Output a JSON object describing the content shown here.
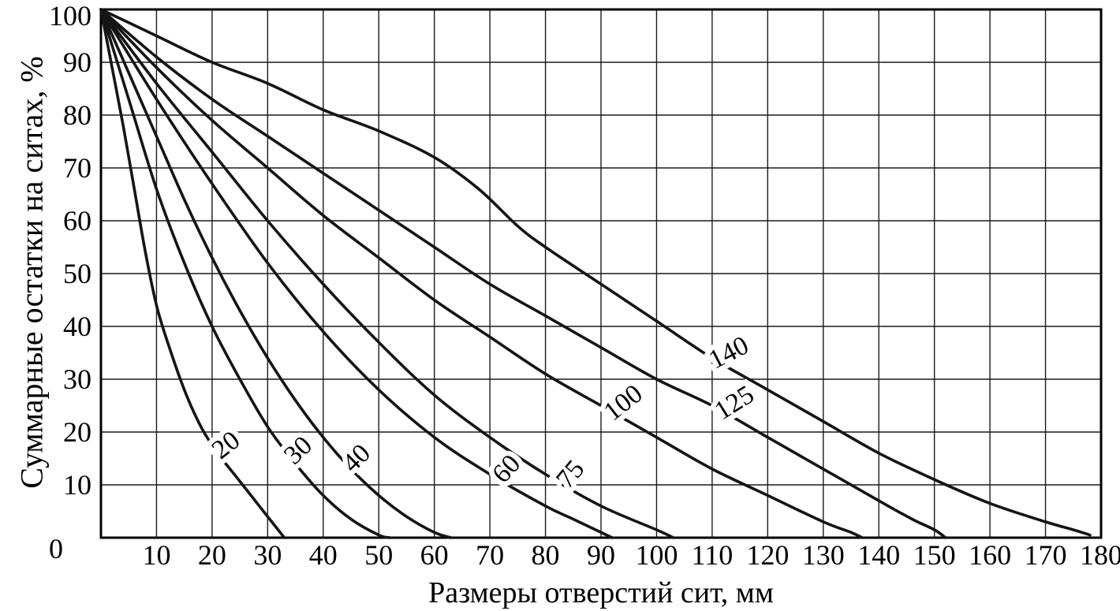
{
  "chart_data": {
    "type": "line",
    "title": "",
    "xlabel": "Размеры отверстий сит, мм",
    "ylabel": "Суммарные остатки на ситах, %",
    "origin_label": "0",
    "xlim": [
      0,
      180
    ],
    "ylim": [
      0,
      100
    ],
    "x_ticks": [
      10,
      20,
      30,
      40,
      50,
      60,
      70,
      80,
      90,
      100,
      110,
      120,
      130,
      140,
      150,
      160,
      170,
      180
    ],
    "y_ticks": [
      10,
      20,
      30,
      40,
      50,
      60,
      70,
      80,
      90,
      100
    ],
    "grid": true,
    "legend_position": "labels-on-curves",
    "series": [
      {
        "name": "20",
        "label_x": 22.5,
        "label_y": 17.5,
        "label_rotation": -38,
        "points": [
          [
            0,
            100
          ],
          [
            2,
            89
          ],
          [
            4,
            78
          ],
          [
            6,
            66
          ],
          [
            8,
            54
          ],
          [
            10,
            44
          ],
          [
            12,
            37
          ],
          [
            15,
            28
          ],
          [
            18,
            21
          ],
          [
            21,
            16
          ],
          [
            24,
            12
          ],
          [
            27,
            8
          ],
          [
            30,
            4
          ],
          [
            33,
            0
          ]
        ]
      },
      {
        "name": "30",
        "label_x": 35.5,
        "label_y": 16.5,
        "label_rotation": -43,
        "points": [
          [
            0,
            100
          ],
          [
            5,
            83
          ],
          [
            10,
            66
          ],
          [
            15,
            52
          ],
          [
            20,
            40
          ],
          [
            25,
            30
          ],
          [
            30,
            21
          ],
          [
            35,
            14
          ],
          [
            40,
            8
          ],
          [
            45,
            3.5
          ],
          [
            50,
            0.5
          ],
          [
            52,
            0
          ]
        ]
      },
      {
        "name": "40",
        "label_x": 46,
        "label_y": 15,
        "label_rotation": -44,
        "points": [
          [
            0,
            100
          ],
          [
            5,
            88
          ],
          [
            10,
            76
          ],
          [
            15,
            64
          ],
          [
            20,
            53
          ],
          [
            25,
            43
          ],
          [
            30,
            34
          ],
          [
            35,
            26
          ],
          [
            40,
            19
          ],
          [
            45,
            13
          ],
          [
            50,
            8
          ],
          [
            55,
            4
          ],
          [
            60,
            1
          ],
          [
            63,
            0
          ]
        ]
      },
      {
        "name": "60",
        "label_x": 73,
        "label_y": 13,
        "label_rotation": -48,
        "points": [
          [
            0,
            100
          ],
          [
            10,
            83
          ],
          [
            20,
            67
          ],
          [
            30,
            52
          ],
          [
            40,
            39
          ],
          [
            50,
            28
          ],
          [
            60,
            19
          ],
          [
            70,
            12
          ],
          [
            80,
            6
          ],
          [
            85,
            3.5
          ],
          [
            90,
            1
          ],
          [
            92,
            0
          ]
        ]
      },
      {
        "name": "75",
        "label_x": 84.5,
        "label_y": 12,
        "label_rotation": -50,
        "points": [
          [
            0,
            100
          ],
          [
            10,
            86
          ],
          [
            20,
            73
          ],
          [
            30,
            60
          ],
          [
            40,
            48
          ],
          [
            50,
            37
          ],
          [
            60,
            27
          ],
          [
            70,
            19
          ],
          [
            80,
            12
          ],
          [
            90,
            6
          ],
          [
            100,
            1.5
          ],
          [
            103,
            0
          ]
        ]
      },
      {
        "name": "100",
        "label_x": 94,
        "label_y": 25.5,
        "label_rotation": -38,
        "points": [
          [
            0,
            100
          ],
          [
            10,
            89
          ],
          [
            20,
            79
          ],
          [
            30,
            70
          ],
          [
            40,
            61
          ],
          [
            50,
            53
          ],
          [
            60,
            45
          ],
          [
            70,
            38
          ],
          [
            80,
            31
          ],
          [
            90,
            25
          ],
          [
            100,
            19
          ],
          [
            110,
            13
          ],
          [
            120,
            8
          ],
          [
            130,
            3
          ],
          [
            135,
            1
          ],
          [
            137,
            0
          ]
        ]
      },
      {
        "name": "125",
        "label_x": 114,
        "label_y": 25.5,
        "label_rotation": -32,
        "points": [
          [
            0,
            100
          ],
          [
            10,
            91
          ],
          [
            20,
            83
          ],
          [
            30,
            76
          ],
          [
            40,
            69
          ],
          [
            50,
            62
          ],
          [
            60,
            55
          ],
          [
            70,
            48
          ],
          [
            80,
            42
          ],
          [
            90,
            36
          ],
          [
            100,
            30
          ],
          [
            110,
            25
          ],
          [
            120,
            19
          ],
          [
            130,
            13
          ],
          [
            140,
            7
          ],
          [
            146,
            3.5
          ],
          [
            150,
            1.5
          ],
          [
            152,
            0
          ]
        ]
      },
      {
        "name": "140",
        "label_x": 113,
        "label_y": 35,
        "label_rotation": -27,
        "points": [
          [
            0,
            100
          ],
          [
            10,
            95
          ],
          [
            20,
            90
          ],
          [
            30,
            86
          ],
          [
            40,
            81
          ],
          [
            50,
            77
          ],
          [
            60,
            72
          ],
          [
            68,
            66
          ],
          [
            75,
            59
          ],
          [
            80,
            55
          ],
          [
            90,
            48
          ],
          [
            100,
            41
          ],
          [
            110,
            34
          ],
          [
            120,
            28
          ],
          [
            130,
            22
          ],
          [
            140,
            16
          ],
          [
            150,
            11
          ],
          [
            160,
            6.5
          ],
          [
            170,
            3
          ],
          [
            175,
            1.5
          ],
          [
            178,
            0.5
          ]
        ]
      }
    ]
  },
  "colors": {
    "background": "#ffffff",
    "curve": "#151515",
    "grid": "#1a1a1a",
    "axis": "#000000",
    "text": "#000000",
    "halo": "#ffffff"
  }
}
